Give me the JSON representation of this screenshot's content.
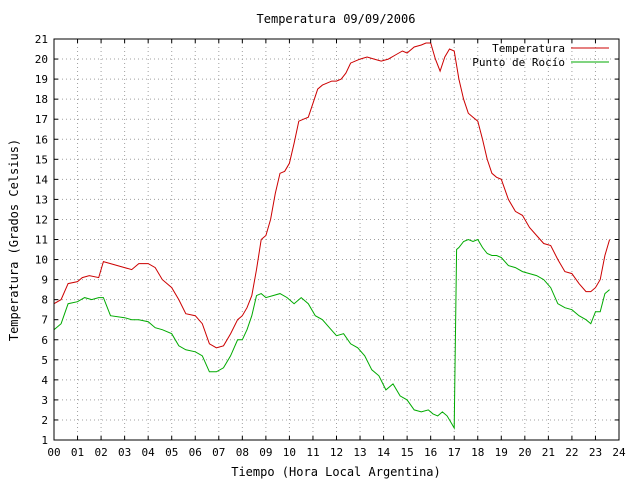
{
  "chart_data": {
    "type": "line",
    "title": "Temperatura 09/09/2006",
    "xlabel": "Tiempo (Hora Local Argentina)",
    "ylabel": "Temperatura (Grados Celsius)",
    "xlim": [
      0,
      24
    ],
    "ylim": [
      1,
      21
    ],
    "x_ticks": [
      "00",
      "01",
      "02",
      "03",
      "04",
      "05",
      "06",
      "07",
      "08",
      "09",
      "10",
      "11",
      "12",
      "13",
      "14",
      "15",
      "16",
      "17",
      "18",
      "19",
      "20",
      "21",
      "22",
      "23",
      "24"
    ],
    "y_ticks": [
      1,
      2,
      3,
      4,
      5,
      6,
      7,
      8,
      9,
      10,
      11,
      12,
      13,
      14,
      15,
      16,
      17,
      18,
      19,
      20,
      21
    ],
    "grid": true,
    "legend_position": "top-right",
    "series": [
      {
        "name": "Temperatura",
        "color": "#cc0000",
        "x": [
          0,
          0.3,
          0.6,
          1.0,
          1.2,
          1.5,
          1.9,
          2.1,
          2.4,
          3.0,
          3.3,
          3.6,
          4.0,
          4.3,
          4.6,
          5.0,
          5.3,
          5.6,
          6.0,
          6.3,
          6.6,
          6.9,
          7.2,
          7.5,
          7.8,
          8.0,
          8.2,
          8.4,
          8.6,
          8.8,
          9.0,
          9.2,
          9.4,
          9.6,
          9.8,
          10.0,
          10.2,
          10.4,
          10.6,
          10.8,
          11.0,
          11.2,
          11.4,
          11.6,
          11.8,
          12.0,
          12.2,
          12.4,
          12.6,
          12.8,
          13.0,
          13.3,
          13.6,
          13.9,
          14.2,
          14.5,
          14.8,
          15.0,
          15.3,
          15.6,
          15.8,
          16.0,
          16.2,
          16.4,
          16.6,
          16.8,
          17.0,
          17.2,
          17.4,
          17.6,
          17.8,
          18.0,
          18.2,
          18.4,
          18.6,
          18.8,
          19.0,
          19.3,
          19.6,
          19.9,
          20.2,
          20.5,
          20.8,
          21.1,
          21.4,
          21.7,
          22.0,
          22.3,
          22.6,
          22.8,
          23.0,
          23.2,
          23.4,
          23.6
        ],
        "y": [
          7.8,
          8.0,
          8.8,
          8.9,
          9.1,
          9.2,
          9.1,
          9.9,
          9.8,
          9.6,
          9.5,
          9.8,
          9.8,
          9.6,
          9.0,
          8.6,
          8.0,
          7.3,
          7.2,
          6.8,
          5.8,
          5.6,
          5.7,
          6.3,
          7.0,
          7.2,
          7.6,
          8.2,
          9.5,
          11.0,
          11.2,
          12.0,
          13.3,
          14.3,
          14.4,
          14.8,
          15.8,
          16.9,
          17.0,
          17.1,
          17.8,
          18.5,
          18.7,
          18.8,
          18.9,
          18.9,
          19.0,
          19.3,
          19.8,
          19.9,
          20.0,
          20.1,
          20.0,
          19.9,
          20.0,
          20.2,
          20.4,
          20.3,
          20.6,
          20.7,
          20.8,
          20.8,
          20.0,
          19.4,
          20.1,
          20.5,
          20.4,
          19.0,
          18.0,
          17.3,
          17.1,
          16.9,
          16.0,
          15.0,
          14.3,
          14.1,
          14.0,
          13.0,
          12.4,
          12.2,
          11.6,
          11.2,
          10.8,
          10.7,
          10.0,
          9.4,
          9.3,
          8.8,
          8.4,
          8.4,
          8.6,
          9.0,
          10.2,
          11.0
        ]
      },
      {
        "name": "Punto de Rocío",
        "color": "#00aa00",
        "x": [
          0,
          0.3,
          0.6,
          1.0,
          1.3,
          1.6,
          1.9,
          2.1,
          2.4,
          3.0,
          3.3,
          3.6,
          4.0,
          4.3,
          4.6,
          5.0,
          5.3,
          5.6,
          6.0,
          6.3,
          6.6,
          6.9,
          7.2,
          7.5,
          7.8,
          8.0,
          8.2,
          8.4,
          8.6,
          8.8,
          9.0,
          9.3,
          9.6,
          9.9,
          10.2,
          10.5,
          10.8,
          11.1,
          11.4,
          11.7,
          12.0,
          12.3,
          12.6,
          12.9,
          13.2,
          13.5,
          13.8,
          14.1,
          14.4,
          14.7,
          15.0,
          15.3,
          15.6,
          15.9,
          16.1,
          16.3,
          16.5,
          16.7,
          16.9,
          17.0,
          17.1,
          17.2,
          17.4,
          17.6,
          17.8,
          18.0,
          18.2,
          18.4,
          18.6,
          18.8,
          19.0,
          19.3,
          19.6,
          19.9,
          20.2,
          20.5,
          20.8,
          21.1,
          21.4,
          21.7,
          22.0,
          22.3,
          22.6,
          22.8,
          23.0,
          23.2,
          23.4,
          23.6
        ],
        "y": [
          6.5,
          6.8,
          7.8,
          7.9,
          8.1,
          8.0,
          8.1,
          8.1,
          7.2,
          7.1,
          7.0,
          7.0,
          6.9,
          6.6,
          6.5,
          6.3,
          5.7,
          5.5,
          5.4,
          5.2,
          4.4,
          4.4,
          4.6,
          5.2,
          6.0,
          6.0,
          6.5,
          7.2,
          8.2,
          8.3,
          8.1,
          8.2,
          8.3,
          8.1,
          7.8,
          8.1,
          7.8,
          7.2,
          7.0,
          6.6,
          6.2,
          6.3,
          5.8,
          5.6,
          5.2,
          4.5,
          4.2,
          3.5,
          3.8,
          3.2,
          3.0,
          2.5,
          2.4,
          2.5,
          2.3,
          2.2,
          2.4,
          2.2,
          1.8,
          1.6,
          10.5,
          10.6,
          10.9,
          11.0,
          10.9,
          11.0,
          10.6,
          10.3,
          10.2,
          10.2,
          10.1,
          9.7,
          9.6,
          9.4,
          9.3,
          9.2,
          9.0,
          8.6,
          7.8,
          7.6,
          7.5,
          7.2,
          7.0,
          6.8,
          7.4,
          7.4,
          8.3,
          8.5
        ]
      }
    ]
  }
}
